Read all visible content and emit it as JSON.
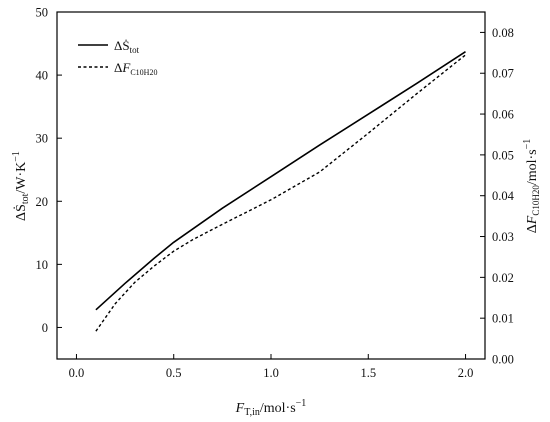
{
  "chart_data": {
    "type": "line",
    "xlabel": "F_T,in/mol·s⁻¹",
    "ylabel_left": "ΔṠ_tot/W·K⁻¹",
    "ylabel_right": "ΔF_C10H20/mol·s⁻¹",
    "xlim": [
      -0.1,
      2.1
    ],
    "ylim_left": [
      -5,
      50
    ],
    "ylim_right": [
      0.0,
      0.085
    ],
    "x_ticks": [
      0.0,
      0.5,
      1.0,
      1.5,
      2.0
    ],
    "x_tick_labels": [
      "0.0",
      "0.5",
      "1.0",
      "1.5",
      "2.0"
    ],
    "y_left_ticks": [
      0,
      10,
      20,
      30,
      40,
      50
    ],
    "y_left_tick_labels": [
      "0",
      "10",
      "20",
      "30",
      "40",
      "50"
    ],
    "y_right_ticks": [
      0.0,
      0.01,
      0.02,
      0.03,
      0.04,
      0.05,
      0.06,
      0.07,
      0.08
    ],
    "y_right_tick_labels": [
      "0.00",
      "0.01",
      "0.02",
      "0.03",
      "0.04",
      "0.05",
      "0.06",
      "0.07",
      "0.08"
    ],
    "grid": false,
    "legend_position": "top-left",
    "series": [
      {
        "name": "ΔṠ_tot",
        "axis": "left",
        "style": "solid",
        "x": [
          0.1,
          0.25,
          0.4,
          0.5,
          0.75,
          1.0,
          1.25,
          1.5,
          1.75,
          2.0
        ],
        "y": [
          2.8,
          7.0,
          11.0,
          13.5,
          18.9,
          23.9,
          28.9,
          33.8,
          38.7,
          43.7
        ]
      },
      {
        "name": "ΔF_C10H20",
        "axis": "right",
        "style": "dashed",
        "x": [
          0.1,
          0.2,
          0.3,
          0.4,
          0.5,
          0.6,
          0.75,
          1.0,
          1.25,
          1.5,
          1.75,
          2.0
        ],
        "y": [
          0.0068,
          0.0136,
          0.0188,
          0.0228,
          0.0264,
          0.0293,
          0.033,
          0.039,
          0.0458,
          0.0553,
          0.065,
          0.0745
        ]
      }
    ]
  }
}
